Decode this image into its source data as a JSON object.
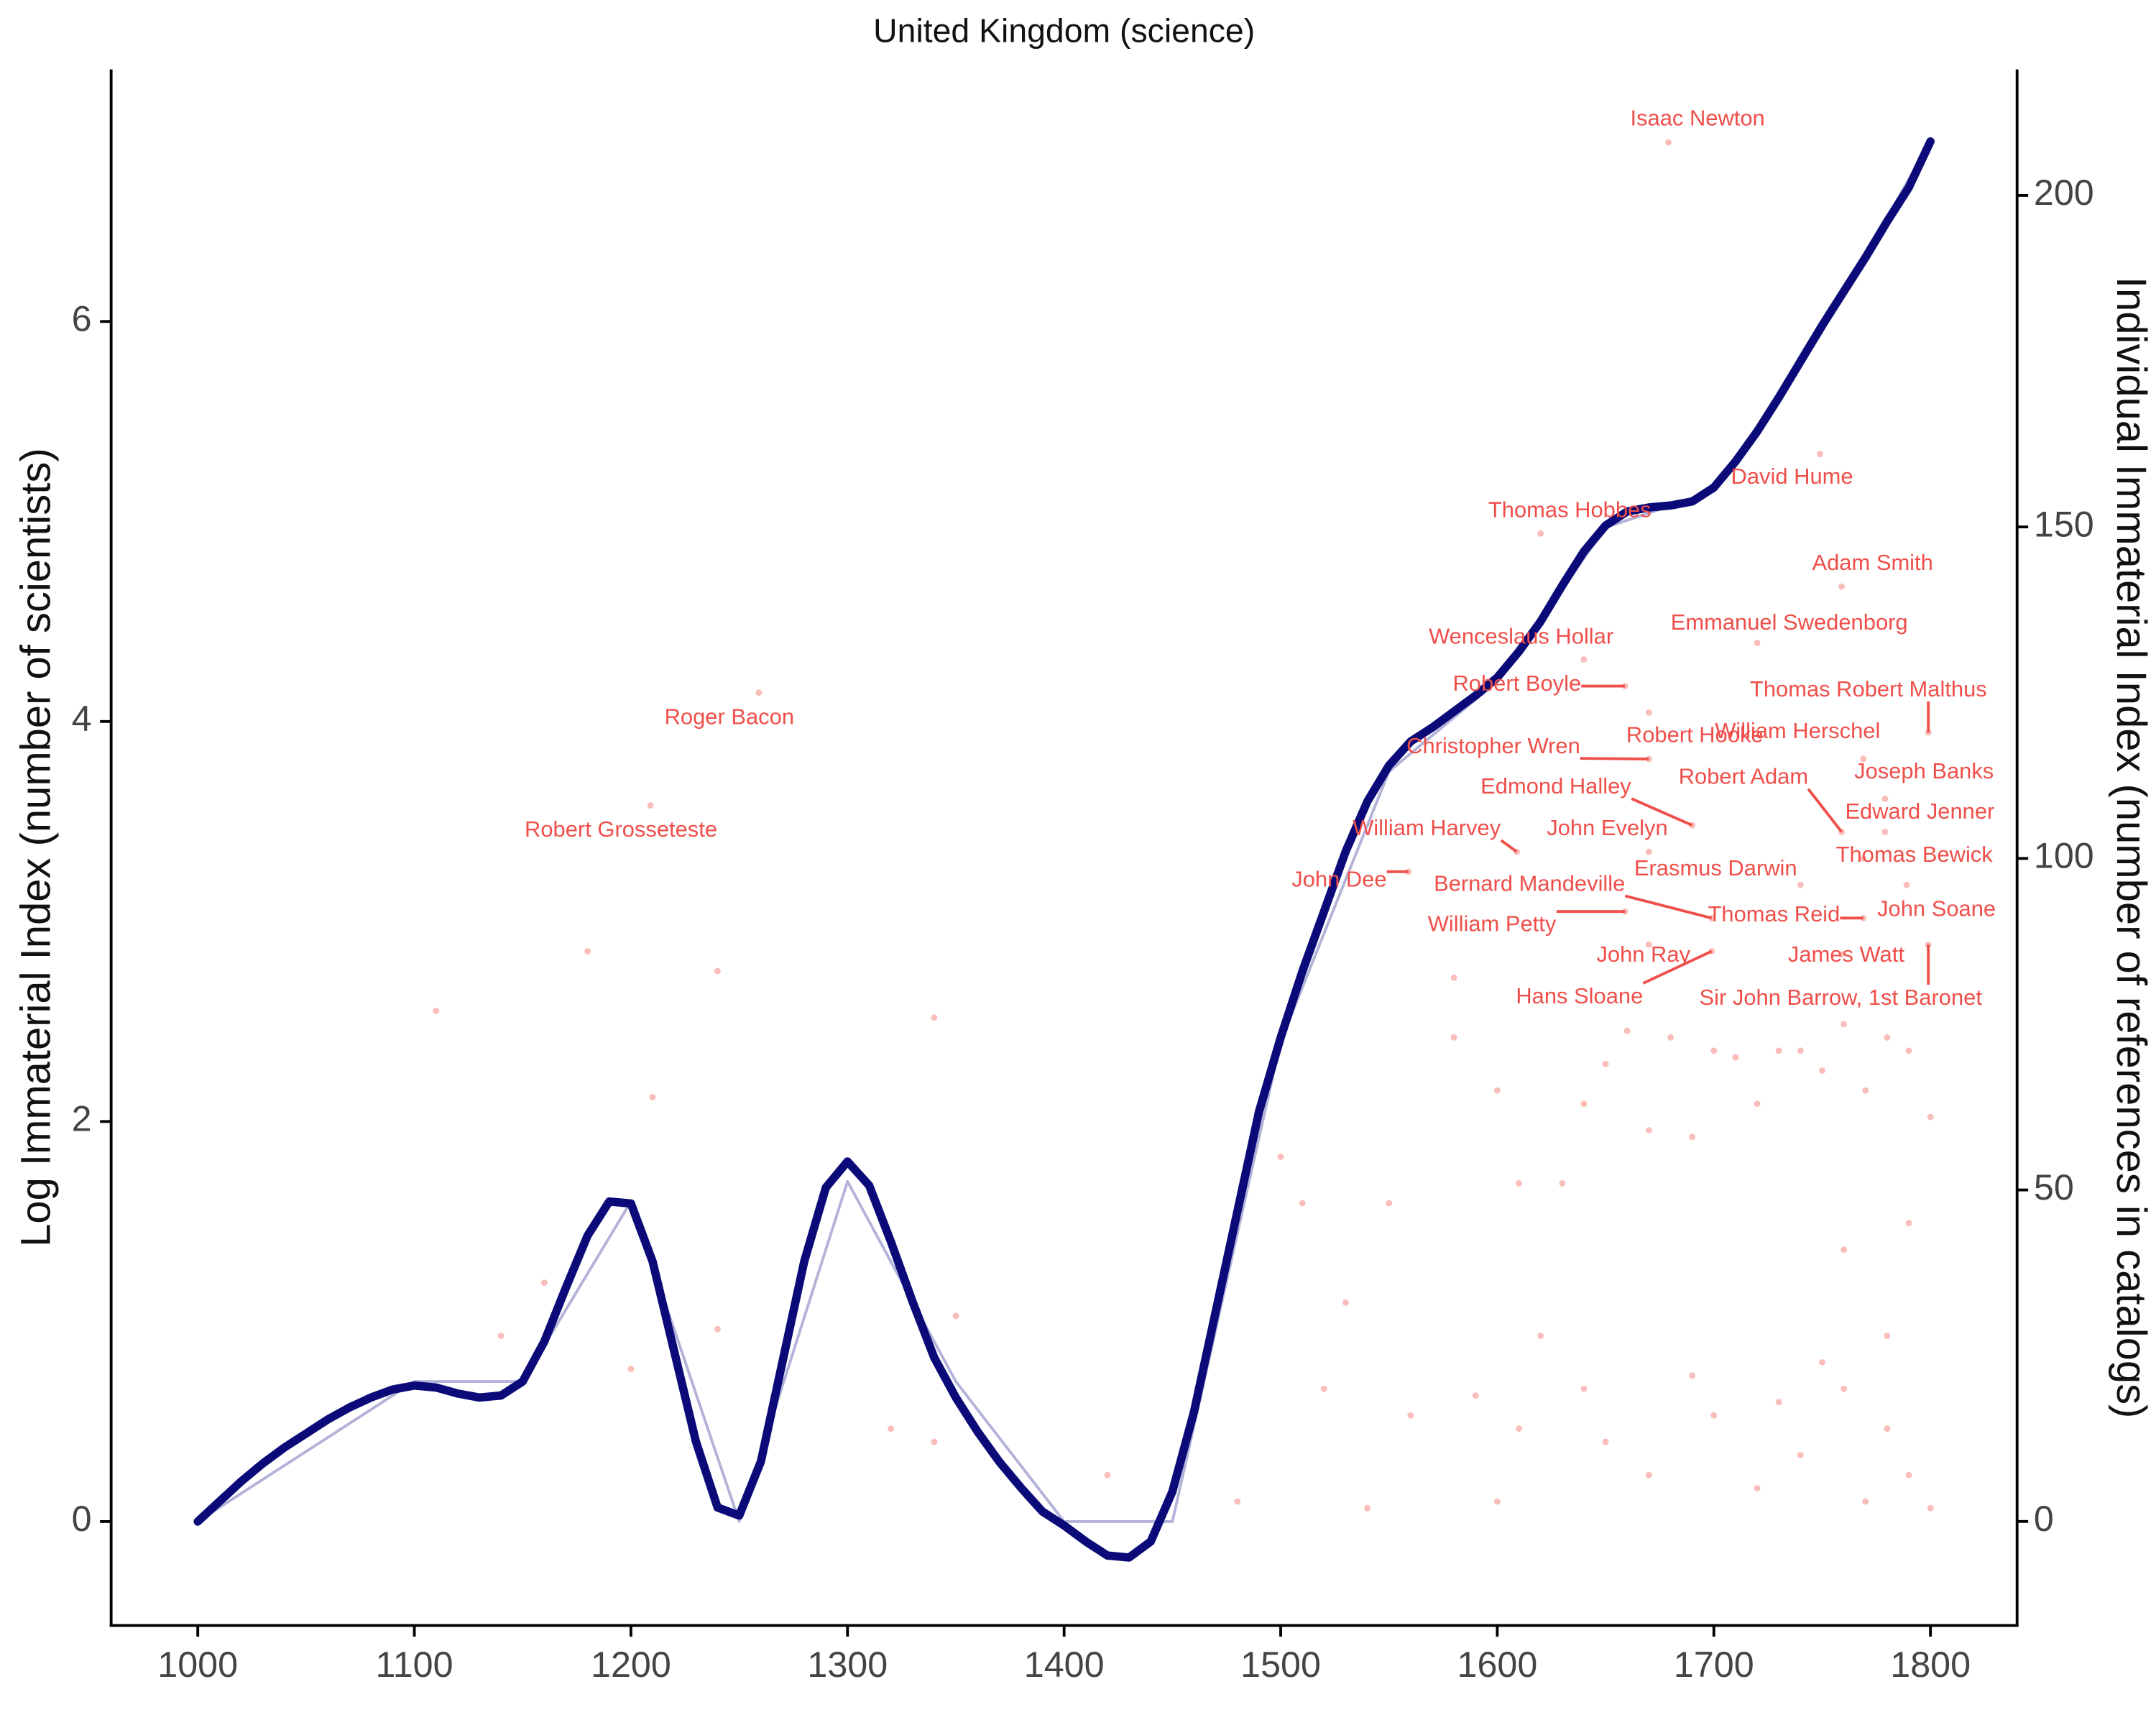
{
  "chart_data": {
    "type": "line",
    "title": "United Kingdom (science)",
    "y_label": "Log Immaterial Index (number of scientists)",
    "y2_label": "Individual Immaterial Index (number of references in catalogs)",
    "xlim": [
      960,
      1840
    ],
    "ylim": [
      -0.52,
      7.26
    ],
    "y2lim": [
      -15.7,
      219
    ],
    "xticks": [
      1000,
      1100,
      1200,
      1300,
      1400,
      1500,
      1600,
      1700,
      1800
    ],
    "yticks": [
      0,
      2,
      4,
      6
    ],
    "y2ticks": [
      0,
      50,
      100,
      150,
      200
    ],
    "series": [
      {
        "type": "scatter",
        "axis": "y2",
        "color": "#f8a29d",
        "x": [
          1110,
          1180,
          1210,
          1240,
          1340,
          1140,
          1160,
          1200,
          1240,
          1350,
          1320,
          1340,
          1420,
          1480,
          1500,
          1510,
          1520,
          1530,
          1540,
          1550,
          1560,
          1580,
          1580,
          1590,
          1600,
          1610,
          1620,
          1630,
          1640,
          1650,
          1660,
          1670,
          1680,
          1690,
          1700,
          1710,
          1720,
          1730,
          1740,
          1750,
          1760,
          1770,
          1780,
          1790,
          1800,
          1650,
          1670,
          1700,
          1720,
          1740,
          1760,
          1770,
          1780,
          1790,
          1800,
          1780,
          1760,
          1790,
          1750,
          1730,
          1690,
          1640,
          1610,
          1600
        ],
        "values": [
          77,
          86,
          64,
          83,
          76,
          28,
          36,
          23,
          29,
          31,
          14,
          12,
          7,
          3,
          55,
          48,
          20,
          33,
          2,
          48,
          16,
          82,
          73,
          19,
          65,
          51,
          28,
          51,
          63,
          69,
          74,
          59,
          73,
          58,
          71,
          70,
          63,
          71,
          71,
          68,
          75,
          65,
          73,
          71,
          61,
          12,
          7,
          16,
          5,
          10,
          20,
          3,
          14,
          7,
          2,
          28,
          41,
          45,
          24,
          18,
          22,
          20,
          14,
          3
        ]
      },
      {
        "type": "smooth",
        "color": "#b3b3d9",
        "x": [
          1000,
          1100,
          1150,
          1200,
          1250,
          1300,
          1350,
          1400,
          1450,
          1500,
          1550,
          1600,
          1650,
          1700,
          1750,
          1800
        ],
        "values": [
          0,
          0.7,
          0.7,
          1.6,
          0,
          1.7,
          0.7,
          0,
          0,
          2.4,
          3.75,
          4.2,
          4.97,
          5.15,
          5.95,
          6.9
        ]
      },
      {
        "type": "smooth",
        "color": "#0a0a78",
        "x": [
          1000,
          1010,
          1020,
          1030,
          1040,
          1050,
          1060,
          1070,
          1080,
          1090,
          1100,
          1110,
          1120,
          1130,
          1140,
          1150,
          1160,
          1170,
          1180,
          1190,
          1200,
          1210,
          1220,
          1230,
          1240,
          1250,
          1260,
          1270,
          1280,
          1290,
          1300,
          1310,
          1320,
          1330,
          1340,
          1350,
          1360,
          1370,
          1380,
          1390,
          1400,
          1410,
          1420,
          1430,
          1440,
          1450,
          1460,
          1470,
          1480,
          1490,
          1500,
          1510,
          1520,
          1530,
          1540,
          1550,
          1560,
          1570,
          1580,
          1590,
          1600,
          1610,
          1620,
          1630,
          1640,
          1650,
          1660,
          1670,
          1680,
          1690,
          1700,
          1710,
          1720,
          1730,
          1740,
          1750,
          1760,
          1770,
          1780,
          1790,
          1800
        ],
        "values": [
          0,
          0.1,
          0.2,
          0.29,
          0.37,
          0.44,
          0.51,
          0.57,
          0.62,
          0.66,
          0.68,
          0.67,
          0.64,
          0.62,
          0.63,
          0.7,
          0.9,
          1.17,
          1.43,
          1.6,
          1.59,
          1.3,
          0.85,
          0.4,
          0.07,
          0.03,
          0.3,
          0.8,
          1.3,
          1.67,
          1.8,
          1.68,
          1.4,
          1.1,
          0.82,
          0.62,
          0.45,
          0.3,
          0.17,
          0.05,
          -0.02,
          -0.1,
          -0.17,
          -0.18,
          -0.1,
          0.15,
          0.55,
          1.05,
          1.55,
          2.05,
          2.42,
          2.75,
          3.05,
          3.35,
          3.6,
          3.78,
          3.9,
          3.97,
          4.05,
          4.13,
          4.22,
          4.35,
          4.5,
          4.68,
          4.85,
          4.98,
          5.05,
          5.07,
          5.08,
          5.1,
          5.17,
          5.3,
          5.45,
          5.62,
          5.8,
          5.98,
          6.15,
          6.32,
          6.5,
          6.67,
          6.9
        ]
      },
      {
        "type": "scatter",
        "axis": "y2",
        "color": "#f8a29d",
        "x": [
          1679,
          1259,
          1209,
          1620,
          1749,
          1759,
          1720,
          1640,
          1659,
          1799,
          1670,
          1670,
          1769,
          1779,
          1759,
          1690,
          1779,
          1609,
          1670,
          1769,
          1559,
          1740,
          1699,
          1789,
          1769,
          1659,
          1670,
          1759,
          1799,
          1699
        ],
        "values": [
          208,
          125,
          108,
          149,
          161,
          141,
          132.5,
          130,
          126,
          119,
          122,
          115,
          115,
          109,
          104,
          105,
          104,
          101,
          101,
          100,
          98,
          96,
          91,
          96,
          91,
          92,
          87,
          85.5,
          87,
          86
        ],
        "labels": [
          "Isaac Newton",
          "Roger Bacon",
          "Robert Grosseteste",
          "Thomas Hobbes",
          "David Hume",
          "Adam Smith",
          "Emmanuel Swedenborg",
          "Wenceslaus Hollar",
          "Robert Boyle",
          "Thomas Robert Malthus",
          "Robert Hooke",
          "Christopher Wren",
          "William Herschel",
          "Joseph Banks",
          "Robert Adam",
          "Edmond Halley",
          "Edward Jenner",
          "William Harvey",
          "John Evelyn",
          "Thomas Bewick",
          "John Dee",
          "Erasmus Darwin",
          "Bernard Mandeville",
          "John Soane",
          "Thomas Reid",
          "William Petty",
          "John Ray",
          "James Watt",
          "Sir John Barrow, 1st Baronet",
          "Hans Sloane"
        ],
        "label_color": "#ef4f4a"
      }
    ]
  }
}
